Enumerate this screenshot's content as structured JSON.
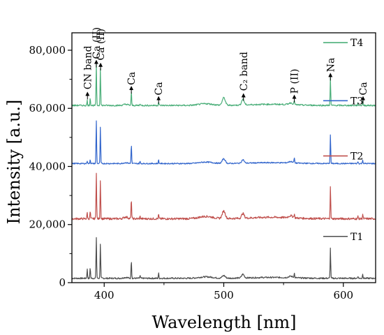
{
  "chart_data": {
    "type": "line",
    "title": "",
    "xlabel": "Wavelength [nm]",
    "ylabel": "Intensity [a.u.]",
    "xlim": [
      373,
      627
    ],
    "ylim": [
      0,
      86000
    ],
    "xticks": [
      400,
      500,
      600
    ],
    "yticks": [
      0,
      20000,
      40000,
      60000,
      80000
    ],
    "xtick_labels": [
      "400",
      "500",
      "600"
    ],
    "ytick_labels": [
      "0",
      "20,000",
      "40,000",
      "60,000",
      "80,000"
    ],
    "grid": false,
    "legend": "right, one label above each trace",
    "series": [
      {
        "name": "T1",
        "color": "#4d4d4d",
        "baseline": 1500,
        "noise": 250,
        "bumps": [
          [
            418,
            300,
            2.5
          ],
          [
            485,
            500,
            8
          ],
          [
            500,
            900,
            1.8
          ],
          [
            516,
            1300,
            1.5
          ],
          [
            556,
            500,
            2.5
          ],
          [
            540,
            300,
            25
          ]
        ],
        "peaks": [
          [
            385.8,
            3200
          ],
          [
            388.3,
            3800
          ],
          [
            393.4,
            14500
          ],
          [
            396.8,
            12000
          ],
          [
            422.7,
            6500
          ],
          [
            445.5,
            1800
          ],
          [
            430,
            900
          ],
          [
            559,
            1600
          ],
          [
            589.2,
            10500
          ],
          [
            616.2,
            1600
          ],
          [
            612.2,
            800
          ]
        ]
      },
      {
        "name": "T2",
        "color": "#c0504d",
        "baseline": 22000,
        "noise": 350,
        "bumps": [
          [
            418,
            600,
            2.5
          ],
          [
            485,
            800,
            8
          ],
          [
            500,
            2600,
            1.8
          ],
          [
            516,
            1600,
            1.5
          ],
          [
            556,
            700,
            2.5
          ],
          [
            540,
            500,
            25
          ]
        ],
        "peaks": [
          [
            385.8,
            2200
          ],
          [
            388.3,
            2600
          ],
          [
            393.4,
            16500
          ],
          [
            396.8,
            13500
          ],
          [
            422.7,
            7000
          ],
          [
            445.5,
            1500
          ],
          [
            430,
            800
          ],
          [
            559,
            1300
          ],
          [
            589.2,
            11500
          ],
          [
            616.2,
            1600
          ],
          [
            612.2,
            800
          ]
        ]
      },
      {
        "name": "T3",
        "color": "#3366cc",
        "baseline": 41000,
        "noise": 200,
        "bumps": [
          [
            418,
            300,
            2.5
          ],
          [
            485,
            500,
            8
          ],
          [
            500,
            1600,
            1.8
          ],
          [
            516,
            1200,
            1.5
          ],
          [
            556,
            500,
            2.5
          ],
          [
            540,
            300,
            25
          ]
        ],
        "peaks": [
          [
            385.8,
            1000
          ],
          [
            388.3,
            1400
          ],
          [
            393.4,
            15200
          ],
          [
            396.8,
            12500
          ],
          [
            422.7,
            6800
          ],
          [
            445.5,
            1300
          ],
          [
            430,
            700
          ],
          [
            559,
            1800
          ],
          [
            589.2,
            10200
          ],
          [
            616.2,
            1300
          ],
          [
            612.2,
            700
          ]
        ]
      },
      {
        "name": "T4",
        "color": "#4caf7a",
        "baseline": 61000,
        "noise": 250,
        "bumps": [
          [
            418,
            400,
            2.5
          ],
          [
            485,
            600,
            8
          ],
          [
            500,
            2600,
            1.8
          ],
          [
            516,
            2000,
            1.5
          ],
          [
            556,
            600,
            2.5
          ],
          [
            540,
            400,
            25
          ]
        ],
        "peaks": [
          [
            385.8,
            1800
          ],
          [
            388.3,
            2600
          ],
          [
            393.4,
            14500
          ],
          [
            396.8,
            13000
          ],
          [
            422.7,
            4800
          ],
          [
            445.5,
            1200
          ],
          [
            430,
            700
          ],
          [
            559,
            1600
          ],
          [
            589.2,
            9600
          ],
          [
            616.2,
            1400
          ],
          [
            612.2,
            700
          ]
        ]
      }
    ],
    "annotations": [
      {
        "label": "CN band",
        "x": 386,
        "arrow_y": 65000,
        "text_y": 66500
      },
      {
        "label": "Ca (II)",
        "x": 393.4,
        "arrow_y": 76000,
        "text_y": 77000
      },
      {
        "label": "Ca (II)",
        "x": 397,
        "arrow_y": 75000,
        "text_y": 76500
      },
      {
        "label": "Ca",
        "x": 422.7,
        "arrow_y": 67000,
        "text_y": 68000
      },
      {
        "label": "Ca",
        "x": 445.5,
        "arrow_y": 63500,
        "text_y": 64500
      },
      {
        "label": "C₂ band",
        "x": 516.5,
        "arrow_y": 64500,
        "text_y": 66000
      },
      {
        "label": "P (II)",
        "x": 559,
        "arrow_y": 64000,
        "text_y": 65000
      },
      {
        "label": "Na",
        "x": 589.2,
        "arrow_y": 71500,
        "text_y": 72500
      },
      {
        "label": "Ca",
        "x": 616.5,
        "arrow_y": 63500,
        "text_y": 64500
      }
    ]
  }
}
